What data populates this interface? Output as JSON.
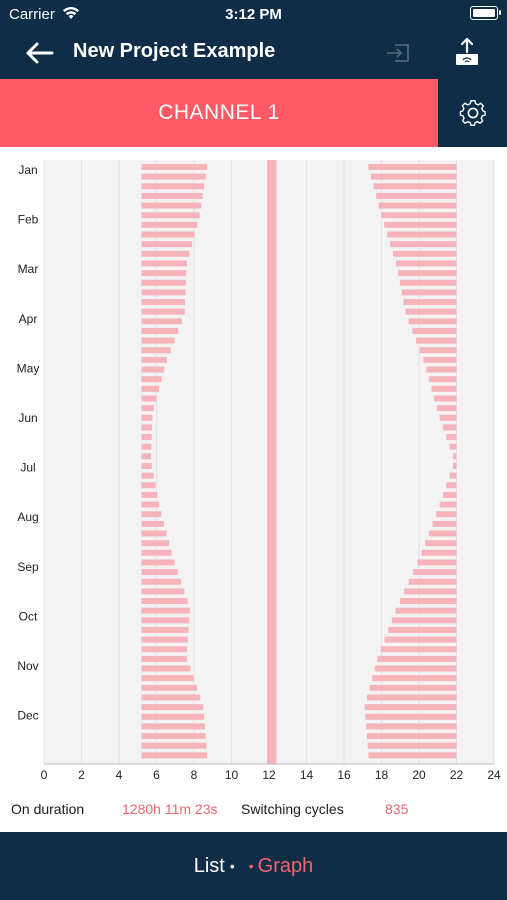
{
  "status_bar": {
    "carrier": "Carrier",
    "time": "3:12 PM"
  },
  "nav": {
    "title": "New Project Example",
    "back_icon": "arrow-left-icon",
    "import_icon": "import-icon",
    "export_icon": "upload-icon"
  },
  "channel": {
    "label": "CHANNEL 1",
    "settings_icon": "gear-icon"
  },
  "colors": {
    "header_bg": "#0f2d46",
    "accent": "#fd5a65",
    "bar_pink": "#f7b3ba",
    "plot_bg": "#f3f3f3",
    "value_text": "#f06470"
  },
  "chart_data": {
    "type": "bar",
    "orientation": "horizontal-timeline",
    "xlabel": "",
    "ylabel": "",
    "xlim": [
      0,
      24
    ],
    "x_ticks": [
      "0",
      "2",
      "4",
      "6",
      "8",
      "10",
      "12",
      "14",
      "16",
      "18",
      "20",
      "22",
      "24"
    ],
    "y_ticks": [
      "Jan",
      "Feb",
      "Mar",
      "Apr",
      "May",
      "Jun",
      "Jul",
      "Aug",
      "Sep",
      "Oct",
      "Nov",
      "Dec"
    ],
    "grid": true,
    "series": [
      {
        "on_intervals_by_period": {
          "morning": {
            "start": 5.2,
            "end_by_month": [
              8.7,
              8.3,
              7.6,
              7.5,
              6.5,
              5.8,
              5.7,
              6.2,
              6.9,
              7.8,
              7.6,
              8.5,
              8.7
            ]
          },
          "noon": {
            "start": 11.9,
            "end": 12.4
          },
          "evening": {
            "start_by_month": [
              17.3,
              18.0,
              18.8,
              19.3,
              20.3,
              21.0,
              21.9,
              21.0,
              20.0,
              18.8,
              17.8,
              17.1,
              17.3
            ],
            "end": 22.0
          }
        }
      }
    ]
  },
  "summary": {
    "on_duration_label": "On duration",
    "on_duration_value": "1280h 11m 23s",
    "switching_cycles_label": "Switching cycles",
    "switching_cycles_value": "835"
  },
  "bottom_nav": {
    "list_label": "List",
    "graph_label": "Graph",
    "separator": "•"
  }
}
